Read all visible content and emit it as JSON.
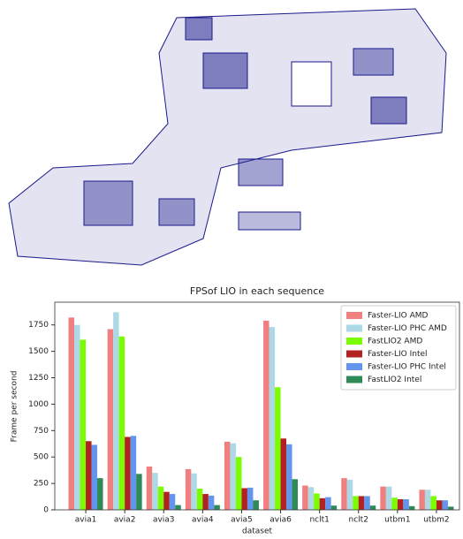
{
  "chart_data": {
    "type": "bar",
    "title": "FPSof LIO in each sequence",
    "x_label": "dataset",
    "y_label": "Frame per second",
    "categories": [
      "avia1",
      "avia2",
      "avia3",
      "avia4",
      "avia5",
      "avia6",
      "nclt1",
      "nclt2",
      "utbm1",
      "utbm2"
    ],
    "series": [
      {
        "name": "Faster-LIO AMD",
        "color": "#f08080",
        "values": [
          1820,
          1710,
          410,
          385,
          645,
          1790,
          230,
          300,
          220,
          190
        ]
      },
      {
        "name": "Faster-LIO  PHC AMD",
        "color": "#add8e6",
        "values": [
          1750,
          1870,
          350,
          345,
          630,
          1730,
          215,
          285,
          220,
          190
        ]
      },
      {
        "name": "FastLIO2 AMD",
        "color": "#7cfc00",
        "values": [
          1610,
          1640,
          220,
          200,
          500,
          1160,
          155,
          130,
          115,
          130
        ]
      },
      {
        "name": "Faster-LIO Intel",
        "color": "#b22222",
        "values": [
          650,
          690,
          170,
          150,
          205,
          675,
          110,
          130,
          100,
          90
        ]
      },
      {
        "name": "Faster-LIO PHC Intel",
        "color": "#6495ed",
        "values": [
          615,
          700,
          150,
          135,
          210,
          620,
          120,
          130,
          100,
          90
        ]
      },
      {
        "name": "FastLIO2 Intel",
        "color": "#2e8b57",
        "values": [
          300,
          340,
          45,
          45,
          90,
          290,
          40,
          40,
          35,
          30
        ]
      }
    ],
    "ylim": [
      0,
      1965
    ],
    "yticks": [
      0,
      250,
      500,
      750,
      1000,
      1250,
      1500,
      1750
    ],
    "legend": "upper right"
  }
}
